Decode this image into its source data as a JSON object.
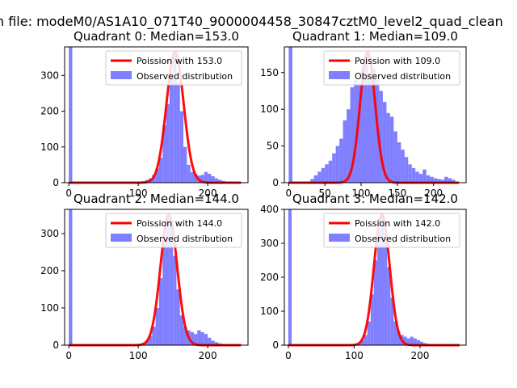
{
  "figure": {
    "suptitle": "n file: modeM0/AS1A10_071T40_9000004458_30847cztM0_level2_quad_clean",
    "colors": {
      "histogram": "#7f7fff",
      "fit": "#ff0000",
      "axis": "#000000"
    }
  },
  "chart_data": [
    {
      "type": "bar",
      "title": "Quadrant 0: Median=153.0",
      "xlim": [
        -6,
        258
      ],
      "ylim": [
        0,
        380
      ],
      "xticks": [
        0,
        100,
        200
      ],
      "yticks": [
        0,
        100,
        200,
        300
      ],
      "legend": {
        "location": "top-right",
        "line_label": "Poission with 153.0",
        "hist_label": "Observed distribution"
      },
      "bin_width": 5,
      "bins": [
        {
          "x": 0,
          "count": 380
        },
        {
          "x": 100,
          "count": 2
        },
        {
          "x": 105,
          "count": 4
        },
        {
          "x": 110,
          "count": 8
        },
        {
          "x": 115,
          "count": 12
        },
        {
          "x": 120,
          "count": 22
        },
        {
          "x": 125,
          "count": 40
        },
        {
          "x": 130,
          "count": 70
        },
        {
          "x": 135,
          "count": 160
        },
        {
          "x": 140,
          "count": 220
        },
        {
          "x": 145,
          "count": 300
        },
        {
          "x": 150,
          "count": 365
        },
        {
          "x": 155,
          "count": 280
        },
        {
          "x": 160,
          "count": 200
        },
        {
          "x": 165,
          "count": 100
        },
        {
          "x": 170,
          "count": 50
        },
        {
          "x": 175,
          "count": 30
        },
        {
          "x": 180,
          "count": 25
        },
        {
          "x": 185,
          "count": 20
        },
        {
          "x": 190,
          "count": 22
        },
        {
          "x": 195,
          "count": 30
        },
        {
          "x": 200,
          "count": 25
        },
        {
          "x": 205,
          "count": 18
        },
        {
          "x": 210,
          "count": 12
        },
        {
          "x": 215,
          "count": 8
        },
        {
          "x": 220,
          "count": 5
        },
        {
          "x": 225,
          "count": 3
        },
        {
          "x": 230,
          "count": 2
        }
      ],
      "poisson": {
        "mean": 153.0,
        "peak": 365
      }
    },
    {
      "type": "bar",
      "title": "Quadrant 1: Median=109.0",
      "xlim": [
        -6,
        245
      ],
      "ylim": [
        0,
        185
      ],
      "xticks": [
        0,
        50,
        100,
        150,
        200
      ],
      "yticks": [
        0,
        50,
        100,
        150
      ],
      "legend": {
        "location": "top-right",
        "line_label": "Poission with 109.0",
        "hist_label": "Observed distribution"
      },
      "bin_width": 5,
      "bins": [
        {
          "x": 0,
          "count": 185
        },
        {
          "x": 30,
          "count": 5
        },
        {
          "x": 35,
          "count": 10
        },
        {
          "x": 40,
          "count": 15
        },
        {
          "x": 45,
          "count": 20
        },
        {
          "x": 50,
          "count": 25
        },
        {
          "x": 55,
          "count": 30
        },
        {
          "x": 60,
          "count": 40
        },
        {
          "x": 65,
          "count": 50
        },
        {
          "x": 70,
          "count": 60
        },
        {
          "x": 75,
          "count": 85
        },
        {
          "x": 80,
          "count": 100
        },
        {
          "x": 85,
          "count": 130
        },
        {
          "x": 90,
          "count": 140
        },
        {
          "x": 95,
          "count": 135
        },
        {
          "x": 100,
          "count": 160
        },
        {
          "x": 105,
          "count": 175
        },
        {
          "x": 110,
          "count": 150
        },
        {
          "x": 115,
          "count": 155
        },
        {
          "x": 120,
          "count": 140
        },
        {
          "x": 125,
          "count": 125
        },
        {
          "x": 130,
          "count": 110
        },
        {
          "x": 135,
          "count": 95
        },
        {
          "x": 140,
          "count": 90
        },
        {
          "x": 145,
          "count": 70
        },
        {
          "x": 150,
          "count": 55
        },
        {
          "x": 155,
          "count": 45
        },
        {
          "x": 160,
          "count": 35
        },
        {
          "x": 165,
          "count": 25
        },
        {
          "x": 170,
          "count": 20
        },
        {
          "x": 175,
          "count": 15
        },
        {
          "x": 180,
          "count": 12
        },
        {
          "x": 185,
          "count": 18
        },
        {
          "x": 190,
          "count": 10
        },
        {
          "x": 195,
          "count": 8
        },
        {
          "x": 200,
          "count": 6
        },
        {
          "x": 205,
          "count": 5
        },
        {
          "x": 210,
          "count": 4
        },
        {
          "x": 215,
          "count": 8
        },
        {
          "x": 220,
          "count": 6
        },
        {
          "x": 225,
          "count": 4
        }
      ],
      "poisson": {
        "mean": 109.0,
        "peak": 178
      }
    },
    {
      "type": "bar",
      "title": "Quadrant 2: Median=144.0",
      "xlim": [
        -6,
        258
      ],
      "ylim": [
        0,
        365
      ],
      "xticks": [
        0,
        100,
        200
      ],
      "yticks": [
        0,
        100,
        200,
        300
      ],
      "legend": {
        "location": "top-right",
        "line_label": "Poission with 144.0",
        "hist_label": "Observed distribution"
      },
      "bin_width": 5,
      "bins": [
        {
          "x": 0,
          "count": 365
        },
        {
          "x": 75,
          "count": 2
        },
        {
          "x": 100,
          "count": 3
        },
        {
          "x": 105,
          "count": 6
        },
        {
          "x": 110,
          "count": 12
        },
        {
          "x": 115,
          "count": 25
        },
        {
          "x": 120,
          "count": 50
        },
        {
          "x": 125,
          "count": 100
        },
        {
          "x": 130,
          "count": 180
        },
        {
          "x": 135,
          "count": 280
        },
        {
          "x": 140,
          "count": 350
        },
        {
          "x": 145,
          "count": 320
        },
        {
          "x": 150,
          "count": 240
        },
        {
          "x": 155,
          "count": 150
        },
        {
          "x": 160,
          "count": 80
        },
        {
          "x": 165,
          "count": 50
        },
        {
          "x": 170,
          "count": 40
        },
        {
          "x": 175,
          "count": 35
        },
        {
          "x": 180,
          "count": 30
        },
        {
          "x": 185,
          "count": 40
        },
        {
          "x": 190,
          "count": 35
        },
        {
          "x": 195,
          "count": 30
        },
        {
          "x": 200,
          "count": 20
        },
        {
          "x": 205,
          "count": 12
        },
        {
          "x": 210,
          "count": 8
        },
        {
          "x": 215,
          "count": 5
        },
        {
          "x": 220,
          "count": 3
        }
      ],
      "poisson": {
        "mean": 144.0,
        "peak": 350
      }
    },
    {
      "type": "bar",
      "title": "Quadrant 3: Median=142.0",
      "xlim": [
        -6,
        270
      ],
      "ylim": [
        0,
        400
      ],
      "xticks": [
        0,
        100,
        200
      ],
      "yticks": [
        0,
        100,
        200,
        300,
        400
      ],
      "legend": {
        "location": "top-right",
        "line_label": "Poission with 142.0",
        "hist_label": "Observed distribution"
      },
      "bin_width": 5,
      "bins": [
        {
          "x": 0,
          "count": 400
        },
        {
          "x": 75,
          "count": 2
        },
        {
          "x": 100,
          "count": 3
        },
        {
          "x": 105,
          "count": 6
        },
        {
          "x": 110,
          "count": 15
        },
        {
          "x": 115,
          "count": 30
        },
        {
          "x": 120,
          "count": 70
        },
        {
          "x": 125,
          "count": 150
        },
        {
          "x": 130,
          "count": 250
        },
        {
          "x": 135,
          "count": 340
        },
        {
          "x": 140,
          "count": 385
        },
        {
          "x": 145,
          "count": 330
        },
        {
          "x": 150,
          "count": 230
        },
        {
          "x": 155,
          "count": 140
        },
        {
          "x": 160,
          "count": 70
        },
        {
          "x": 165,
          "count": 40
        },
        {
          "x": 170,
          "count": 30
        },
        {
          "x": 175,
          "count": 25
        },
        {
          "x": 180,
          "count": 20
        },
        {
          "x": 185,
          "count": 25
        },
        {
          "x": 190,
          "count": 20
        },
        {
          "x": 195,
          "count": 15
        },
        {
          "x": 200,
          "count": 10
        },
        {
          "x": 205,
          "count": 6
        },
        {
          "x": 210,
          "count": 4
        }
      ],
      "poisson": {
        "mean": 142.0,
        "peak": 385
      }
    }
  ]
}
